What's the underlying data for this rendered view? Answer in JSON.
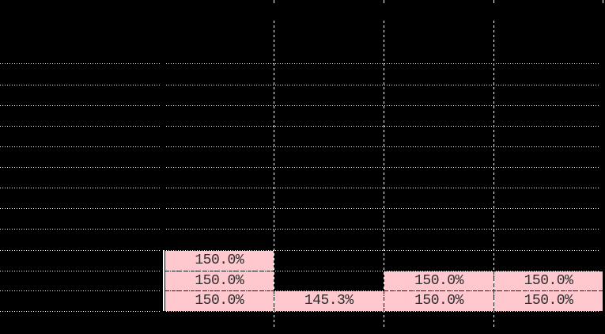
{
  "colors": {
    "background": "#000000",
    "gridline": "#ffffff",
    "highlight_fill": "#ffc7ce",
    "highlight_text": "#2e2e2e"
  },
  "grid": {
    "highlighted_rows": 3,
    "highlighted_columns": 4,
    "values": {
      "r1c1": "150.0%",
      "r2c1": "150.0%",
      "r2c3": "150.0%",
      "r2c4": "150.0%",
      "r3c1": "150.0%",
      "r3c2": "145.3%",
      "r3c3": "150.0%",
      "r3c4": "150.0%"
    }
  }
}
